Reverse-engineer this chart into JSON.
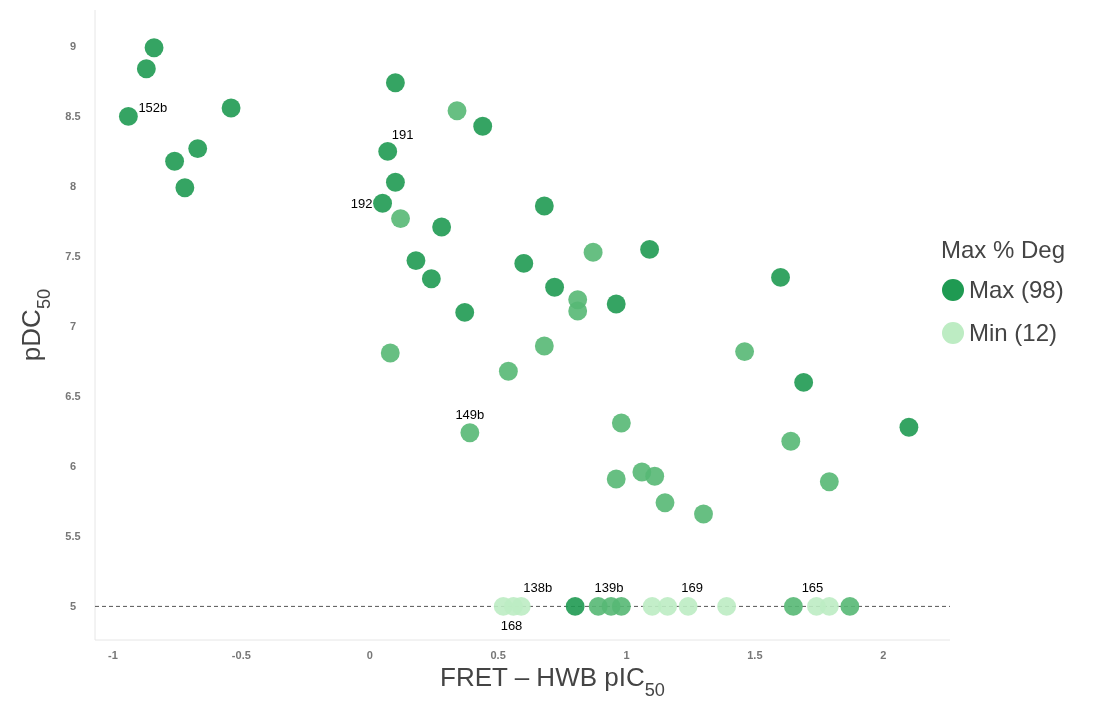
{
  "chart_data": {
    "type": "scatter",
    "xlabel": "FRET – HWB pIC$_{50}$",
    "ylabel": "pDC$_{50}$",
    "legend_title": "Max % Deg",
    "legend": "right",
    "marker": "circle",
    "xlim": [
      -1.07,
      2.26
    ],
    "ylim": [
      4.76,
      9.26
    ],
    "xticks": [
      -1,
      -0.5,
      0,
      0.5,
      1,
      1.5,
      2
    ],
    "yticks": [
      5,
      5.5,
      6,
      6.5,
      7,
      7.5,
      8,
      8.5,
      9
    ],
    "series": [
      {
        "name": "Max (98)",
        "color": "#1f9a52",
        "x": [
          -0.84,
          -0.87,
          -0.94,
          -0.54,
          -0.67,
          -0.76,
          -0.72,
          0.1,
          0.44,
          0.07,
          0.1,
          0.05,
          0.28,
          0.18,
          0.24,
          0.37,
          0.68,
          0.6,
          0.72,
          1.09,
          0.96,
          1.6,
          1.69,
          2.1,
          0.8
        ],
        "values": [
          8.99,
          8.84,
          8.5,
          8.56,
          8.27,
          8.18,
          7.99,
          8.74,
          8.43,
          8.25,
          8.03,
          7.88,
          7.71,
          7.47,
          7.34,
          7.1,
          7.86,
          7.45,
          7.28,
          7.55,
          7.16,
          7.35,
          6.6,
          6.28,
          5
        ]
      },
      {
        "color": "#57b874",
        "x": [
          0.34,
          0.12,
          0.81,
          0.81,
          0.87,
          0.08,
          0.68,
          0.54,
          0.39,
          1.46,
          0.98,
          1.64,
          0.96,
          1.06,
          1.11,
          1.15,
          1.3,
          1.79,
          0.89,
          0.94,
          0.98,
          1.65,
          1.87
        ],
        "values": [
          8.54,
          7.77,
          7.19,
          7.11,
          7.53,
          6.81,
          6.86,
          6.68,
          6.24,
          6.82,
          6.31,
          6.18,
          5.91,
          5.96,
          5.93,
          5.74,
          5.66,
          5.89,
          5,
          5,
          5,
          5,
          5
        ]
      },
      {
        "name": "Min (12)",
        "color": "#bdecc3",
        "x": [
          0.52,
          0.56,
          0.59,
          1.1,
          1.16,
          1.24,
          1.39,
          1.74,
          1.79
        ],
        "values": [
          5,
          5,
          5,
          5,
          5,
          5,
          5,
          5,
          5
        ]
      }
    ],
    "ref_lines": [
      {
        "axis": "y",
        "value": 5,
        "color": "#555555",
        "line_style": "dashed"
      }
    ],
    "annotations": [
      {
        "text": "152b",
        "x": -0.94,
        "y": 8.5
      },
      {
        "text": "191",
        "x": 0.07,
        "y": 8.25
      },
      {
        "text": "192",
        "x": 0.05,
        "y": 7.88
      },
      {
        "text": "149b",
        "x": 0.39,
        "y": 6.24
      },
      {
        "text": "138b",
        "x": 0.59,
        "y": 5
      },
      {
        "text": "168",
        "x": 0.56,
        "y": 5
      },
      {
        "text": "139b",
        "x": 0.94,
        "y": 5
      },
      {
        "text": "169",
        "x": 1.24,
        "y": 5
      },
      {
        "text": "165",
        "x": 1.74,
        "y": 5
      }
    ]
  }
}
